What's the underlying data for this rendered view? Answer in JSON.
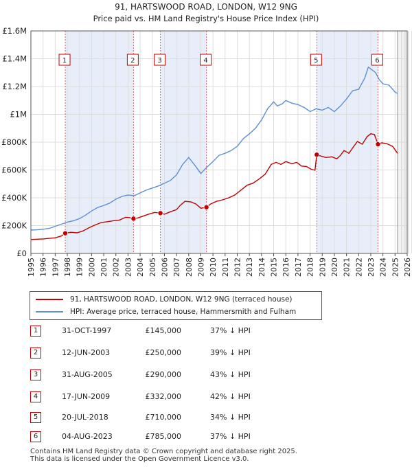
{
  "chart_data": {
    "type": "line",
    "title": "91, HARTSWOOD ROAD, LONDON, W12 9NG",
    "subtitle": "Price paid vs. HM Land Registry's House Price Index (HPI)",
    "xlim": [
      1995,
      2026
    ],
    "ylim": [
      0,
      1600000
    ],
    "x_ticks": [
      "1995",
      "1996",
      "1997",
      "1998",
      "1999",
      "2000",
      "2001",
      "2002",
      "2003",
      "2004",
      "2005",
      "2006",
      "2007",
      "2008",
      "2009",
      "2010",
      "2011",
      "2012",
      "2013",
      "2014",
      "2015",
      "2016",
      "2017",
      "2018",
      "2019",
      "2020",
      "2021",
      "2022",
      "2023",
      "2024",
      "2025",
      "2026"
    ],
    "y_ticks": [
      {
        "value": 0,
        "label": "£0"
      },
      {
        "value": 200000,
        "label": "£200K"
      },
      {
        "value": 400000,
        "label": "£400K"
      },
      {
        "value": 600000,
        "label": "£600K"
      },
      {
        "value": 800000,
        "label": "£800K"
      },
      {
        "value": 1000000,
        "label": "£1M"
      },
      {
        "value": 1200000,
        "label": "£1.2M"
      },
      {
        "value": 1400000,
        "label": "£1.4M"
      },
      {
        "value": 1600000,
        "label": "£1.6M"
      }
    ],
    "shaded_periods": [
      [
        1997.83,
        2003.45
      ],
      [
        2005.67,
        2009.46
      ],
      [
        2018.55,
        2023.59
      ]
    ],
    "future_start": 2025.2,
    "series": [
      {
        "name": "91, HARTSWOOD ROAD, LONDON, W12 9NG (terraced house)",
        "color": "#c00000",
        "points": [
          [
            1995.0,
            100000
          ],
          [
            1995.5,
            102000
          ],
          [
            1996.0,
            104000
          ],
          [
            1996.5,
            108000
          ],
          [
            1997.0,
            112000
          ],
          [
            1997.5,
            125000
          ],
          [
            1997.83,
            145000
          ],
          [
            1998.3,
            152000
          ],
          [
            1998.8,
            148000
          ],
          [
            1999.3,
            162000
          ],
          [
            1999.8,
            185000
          ],
          [
            2000.3,
            205000
          ],
          [
            2000.8,
            222000
          ],
          [
            2001.3,
            228000
          ],
          [
            2001.8,
            235000
          ],
          [
            2002.3,
            240000
          ],
          [
            2002.8,
            260000
          ],
          [
            2003.1,
            258000
          ],
          [
            2003.45,
            250000
          ],
          [
            2003.8,
            255000
          ],
          [
            2004.3,
            270000
          ],
          [
            2004.8,
            285000
          ],
          [
            2005.2,
            295000
          ],
          [
            2005.67,
            290000
          ],
          [
            2006.0,
            282000
          ],
          [
            2006.5,
            300000
          ],
          [
            2007.0,
            315000
          ],
          [
            2007.3,
            345000
          ],
          [
            2007.7,
            375000
          ],
          [
            2008.2,
            370000
          ],
          [
            2008.6,
            355000
          ],
          [
            2009.0,
            325000
          ],
          [
            2009.46,
            332000
          ],
          [
            2009.8,
            355000
          ],
          [
            2010.3,
            375000
          ],
          [
            2010.8,
            385000
          ],
          [
            2011.3,
            400000
          ],
          [
            2011.8,
            420000
          ],
          [
            2012.3,
            455000
          ],
          [
            2012.8,
            490000
          ],
          [
            2013.3,
            505000
          ],
          [
            2013.8,
            535000
          ],
          [
            2014.3,
            570000
          ],
          [
            2014.8,
            640000
          ],
          [
            2015.2,
            655000
          ],
          [
            2015.6,
            640000
          ],
          [
            2016.0,
            660000
          ],
          [
            2016.5,
            645000
          ],
          [
            2016.9,
            655000
          ],
          [
            2017.3,
            628000
          ],
          [
            2017.7,
            625000
          ],
          [
            2018.1,
            605000
          ],
          [
            2018.4,
            598000
          ],
          [
            2018.55,
            710000
          ],
          [
            2018.9,
            700000
          ],
          [
            2019.3,
            690000
          ],
          [
            2019.8,
            695000
          ],
          [
            2020.2,
            680000
          ],
          [
            2020.5,
            705000
          ],
          [
            2020.8,
            740000
          ],
          [
            2021.2,
            720000
          ],
          [
            2021.6,
            770000
          ],
          [
            2021.9,
            805000
          ],
          [
            2022.3,
            785000
          ],
          [
            2022.7,
            840000
          ],
          [
            2023.0,
            860000
          ],
          [
            2023.3,
            855000
          ],
          [
            2023.59,
            785000
          ],
          [
            2023.9,
            795000
          ],
          [
            2024.3,
            790000
          ],
          [
            2024.8,
            770000
          ],
          [
            2025.2,
            720000
          ]
        ]
      },
      {
        "name": "HPI: Average price, terraced house, Hammersmith and Fulham",
        "color": "#5b8fd4",
        "points": [
          [
            1995.0,
            168000
          ],
          [
            1995.5,
            170000
          ],
          [
            1996.0,
            174000
          ],
          [
            1996.5,
            180000
          ],
          [
            1997.0,
            195000
          ],
          [
            1997.5,
            210000
          ],
          [
            1998.0,
            225000
          ],
          [
            1998.5,
            235000
          ],
          [
            1999.0,
            250000
          ],
          [
            1999.5,
            275000
          ],
          [
            2000.0,
            305000
          ],
          [
            2000.5,
            330000
          ],
          [
            2001.0,
            345000
          ],
          [
            2001.5,
            362000
          ],
          [
            2002.0,
            390000
          ],
          [
            2002.5,
            410000
          ],
          [
            2003.0,
            420000
          ],
          [
            2003.5,
            415000
          ],
          [
            2004.0,
            435000
          ],
          [
            2004.5,
            455000
          ],
          [
            2005.0,
            470000
          ],
          [
            2005.5,
            485000
          ],
          [
            2006.0,
            505000
          ],
          [
            2006.5,
            525000
          ],
          [
            2007.0,
            565000
          ],
          [
            2007.5,
            640000
          ],
          [
            2008.0,
            690000
          ],
          [
            2008.5,
            635000
          ],
          [
            2009.0,
            575000
          ],
          [
            2009.5,
            620000
          ],
          [
            2010.0,
            660000
          ],
          [
            2010.5,
            705000
          ],
          [
            2011.0,
            720000
          ],
          [
            2011.5,
            740000
          ],
          [
            2012.0,
            770000
          ],
          [
            2012.5,
            825000
          ],
          [
            2013.0,
            860000
          ],
          [
            2013.5,
            900000
          ],
          [
            2014.0,
            960000
          ],
          [
            2014.5,
            1040000
          ],
          [
            2015.0,
            1090000
          ],
          [
            2015.3,
            1060000
          ],
          [
            2015.7,
            1075000
          ],
          [
            2016.0,
            1100000
          ],
          [
            2016.5,
            1080000
          ],
          [
            2017.0,
            1070000
          ],
          [
            2017.5,
            1050000
          ],
          [
            2018.0,
            1020000
          ],
          [
            2018.5,
            1040000
          ],
          [
            2019.0,
            1030000
          ],
          [
            2019.5,
            1050000
          ],
          [
            2020.0,
            1020000
          ],
          [
            2020.5,
            1060000
          ],
          [
            2021.0,
            1110000
          ],
          [
            2021.5,
            1170000
          ],
          [
            2022.0,
            1180000
          ],
          [
            2022.5,
            1260000
          ],
          [
            2022.8,
            1340000
          ],
          [
            2023.1,
            1320000
          ],
          [
            2023.4,
            1300000
          ],
          [
            2023.7,
            1250000
          ],
          [
            2024.0,
            1220000
          ],
          [
            2024.5,
            1210000
          ],
          [
            2024.8,
            1180000
          ],
          [
            2025.0,
            1160000
          ],
          [
            2025.2,
            1150000
          ]
        ]
      }
    ],
    "sales": [
      {
        "marker": "1",
        "x": 1997.83,
        "date": "31-OCT-1997",
        "price_value": 145000,
        "price": "£145,000",
        "hpi": "37% ↓ HPI"
      },
      {
        "marker": "2",
        "x": 2003.45,
        "date": "12-JUN-2003",
        "price_value": 250000,
        "price": "£250,000",
        "hpi": "39% ↓ HPI"
      },
      {
        "marker": "3",
        "x": 2005.67,
        "date": "31-AUG-2005",
        "price_value": 290000,
        "price": "£290,000",
        "hpi": "43% ↓ HPI"
      },
      {
        "marker": "4",
        "x": 2009.46,
        "date": "17-JUN-2009",
        "price_value": 332000,
        "price": "£332,000",
        "hpi": "42% ↓ HPI"
      },
      {
        "marker": "5",
        "x": 2018.55,
        "date": "20-JUL-2018",
        "price_value": 710000,
        "price": "£710,000",
        "hpi": "34% ↓ HPI"
      },
      {
        "marker": "6",
        "x": 2023.59,
        "date": "04-AUG-2023",
        "price_value": 785000,
        "price": "£785,000",
        "hpi": "37% ↓ HPI"
      }
    ]
  },
  "legend": {
    "property_label": "91, HARTSWOOD ROAD, LONDON, W12 9NG (terraced house)",
    "hpi_label": "HPI: Average price, terraced house, Hammersmith and Fulham"
  },
  "footer": {
    "line1": "Contains HM Land Registry data © Crown copyright and database right 2025.",
    "line2": "This data is licensed under the Open Government Licence v3.0."
  }
}
